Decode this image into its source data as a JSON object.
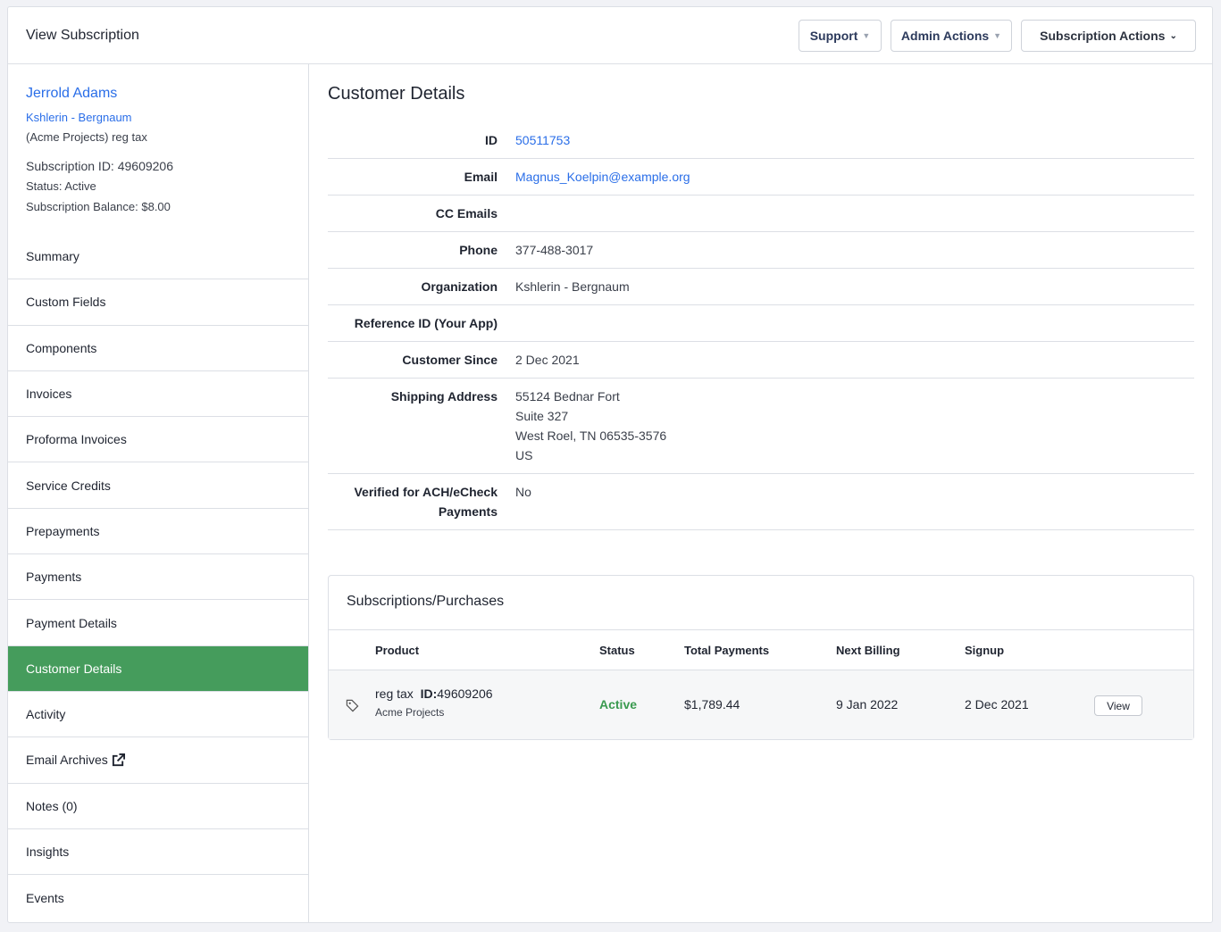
{
  "header": {
    "title": "View Subscription",
    "buttons": [
      "Support",
      "Admin Actions",
      "Subscription Actions"
    ]
  },
  "sidebar": {
    "customer_name": "Jerrold Adams",
    "organization": "Kshlerin - Bergnaum",
    "product_line": "(Acme Projects) reg tax",
    "subscription_id": "Subscription ID: 49609206",
    "status": "Status: Active",
    "balance": "Subscription Balance: $8.00",
    "items": [
      "Summary",
      "Custom Fields",
      "Components",
      "Invoices",
      "Proforma Invoices",
      "Service Credits",
      "Prepayments",
      "Payments",
      "Payment Details",
      "Customer Details",
      "Activity",
      "Email Archives",
      "Notes (0)",
      "Insights",
      "Events"
    ],
    "active": "Customer Details"
  },
  "details": {
    "title": "Customer Details",
    "rows": [
      {
        "label": "ID",
        "value": "50511753"
      },
      {
        "label": "Email",
        "value": "Magnus_Koelpin@example.org"
      },
      {
        "label": "CC Emails",
        "value": ""
      },
      {
        "label": "Phone",
        "value": "377-488-3017"
      },
      {
        "label": "Organization",
        "value": "Kshlerin - Bergnaum"
      },
      {
        "label": "Reference ID (Your App)",
        "value": ""
      },
      {
        "label": "Customer Since",
        "value": "2 Dec 2021"
      },
      {
        "label": "Shipping Address",
        "value": "55124 Bednar Fort\nSuite 327\nWest Roel, TN 06535-3576\nUS"
      },
      {
        "label": "Verified for ACH/eCheck Payments",
        "value": "No"
      }
    ]
  },
  "subscriptions": {
    "title": "Subscriptions/Purchases",
    "columns": [
      "Product",
      "Status",
      "Total Payments",
      "Next Billing",
      "Signup"
    ],
    "row": {
      "product": "reg tax",
      "id_label": "ID:",
      "id": "49609206",
      "family": "Acme Projects",
      "status": "Active",
      "total": "$1,789.44",
      "next_billing": "9 Jan 2022",
      "signup": "2 Dec 2021",
      "action": "View"
    }
  },
  "colors": {
    "accent": "#2a6ee8",
    "active_nav": "#459c5c",
    "status_active": "#3a9a4f"
  }
}
